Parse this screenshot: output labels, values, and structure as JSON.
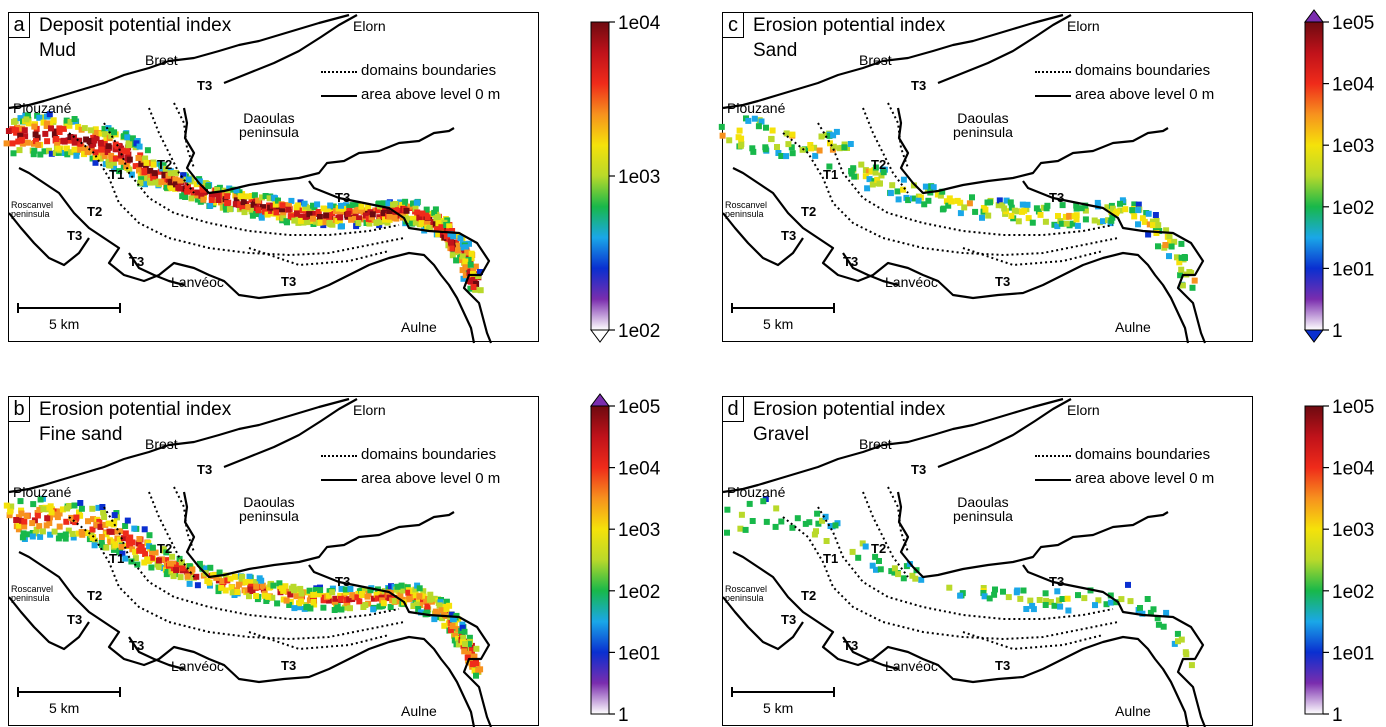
{
  "colors": {
    "colormap": [
      "#ffffff",
      "#7a2dae",
      "#0a2fd0",
      "#1aa7e8",
      "#18b84a",
      "#b9d92a",
      "#f5e20a",
      "#f7921e",
      "#ef2b1a",
      "#c0121a",
      "#6e0a10"
    ],
    "outline": "#000000"
  },
  "panels": [
    {
      "id": "a",
      "letter": "a",
      "title": "Deposit potential index",
      "subtitle": "Mud",
      "legend": {
        "dotted": "domains boundaries",
        "solid": "area above level 0 m"
      },
      "places": {
        "elorn": "Elorn",
        "brest": "Brest",
        "plouzane": "Plouzané",
        "daoulas": "Daoulas\npeninsula",
        "roscanvel": "Roscanvel\npeninsula",
        "lanveoc": "Lanvéoc",
        "aulne": "Aulne"
      },
      "domains": {
        "t1": "T1",
        "t2a": "T2",
        "t2b": "T2",
        "t3a": "T3",
        "t3b": "T3",
        "t3c": "T3",
        "t3d": "T3",
        "t3e": "T3"
      },
      "scalebar": "5 km",
      "colorbar": {
        "ticks": [
          "1e04",
          "1e03",
          "1e02"
        ],
        "arrow_top": false,
        "arrow_bottom": true,
        "scale": "log"
      }
    },
    {
      "id": "c",
      "letter": "c",
      "title": "Erosion potential index",
      "subtitle": "Sand",
      "legend": {
        "dotted": "domains boundaries",
        "solid": "area above level 0 m"
      },
      "places": {
        "elorn": "Elorn",
        "brest": "Brest",
        "plouzane": "Plouzané",
        "daoulas": "Daoulas\npeninsula",
        "roscanvel": "Roscanvel\npeninsula",
        "lanveoc": "Lanvéoc",
        "aulne": "Aulne"
      },
      "domains": {
        "t1": "T1",
        "t2a": "T2",
        "t2b": "T2",
        "t3a": "T3",
        "t3b": "T3",
        "t3c": "T3",
        "t3d": "T3",
        "t3e": "T3"
      },
      "scalebar": "5 km",
      "colorbar": {
        "ticks": [
          "1e05",
          "1e04",
          "1e03",
          "1e02",
          "1e01",
          "1"
        ],
        "arrow_top": true,
        "arrow_bottom": true,
        "scale": "log"
      }
    },
    {
      "id": "b",
      "letter": "b",
      "title": "Erosion potential index",
      "subtitle": "Fine sand",
      "legend": {
        "dotted": "domains boundaries",
        "solid": "area above level 0 m"
      },
      "places": {
        "elorn": "Elorn",
        "brest": "Brest",
        "plouzane": "Plouzané",
        "daoulas": "Daoulas\npeninsula",
        "roscanvel": "Roscanvel\npeninsula",
        "lanveoc": "Lanvéoc",
        "aulne": "Aulne"
      },
      "domains": {
        "t1": "T1",
        "t2a": "T2",
        "t2b": "T2",
        "t3a": "T3",
        "t3b": "T3",
        "t3c": "T3",
        "t3d": "T3",
        "t3e": "T3"
      },
      "scalebar": "5 km",
      "colorbar": {
        "ticks": [
          "1e05",
          "1e04",
          "1e03",
          "1e02",
          "1e01",
          "1"
        ],
        "arrow_top": true,
        "arrow_bottom": false,
        "scale": "log"
      }
    },
    {
      "id": "d",
      "letter": "d",
      "title": "Erosion potential index",
      "subtitle": "Gravel",
      "legend": {
        "dotted": "domains boundaries",
        "solid": "area above level 0 m"
      },
      "places": {
        "elorn": "Elorn",
        "brest": "Brest",
        "plouzane": "Plouzané",
        "daoulas": "Daoulas\npeninsula",
        "roscanvel": "Roscanvel\npeninsula",
        "lanveoc": "Lanvéoc",
        "aulne": "Aulne"
      },
      "domains": {
        "t1": "T1",
        "t2a": "T2",
        "t2b": "T2",
        "t3a": "T3",
        "t3b": "T3",
        "t3c": "T3",
        "t3d": "T3",
        "t3e": "T3"
      },
      "scalebar": "5 km",
      "colorbar": {
        "ticks": [
          "1e05",
          "1e04",
          "1e03",
          "1e02",
          "1e01",
          "1"
        ],
        "arrow_top": false,
        "arrow_bottom": false,
        "scale": "log"
      }
    }
  ],
  "heat_intensity": {
    "a": 0.95,
    "b": 0.75,
    "c": 0.45,
    "d": 0.25
  }
}
